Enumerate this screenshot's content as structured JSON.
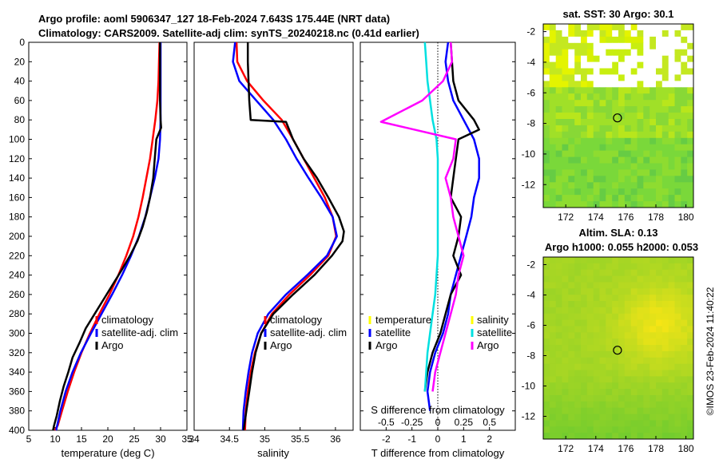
{
  "figure": {
    "title_line1": "Argo profile: aoml 5906347_127 18-Feb-2024 7.643S 175.44E (NRT data)",
    "title_line2": "Climatology: CARS2009. Satellite-adj clim: synTS_20240218.nc (0.41d earlier)",
    "timestamp": "©IMOS 23-Feb-2024 11:40:22"
  },
  "colors": {
    "climatology": "#ff0000",
    "satellite": "#0000ff",
    "argo": "#000000",
    "sat_salinity": "#00e0e0",
    "argo_salinity": "#ff00ff"
  },
  "chart_data": [
    {
      "type": "line",
      "id": "temperature",
      "xlabel": "temperature (deg C)",
      "ylabel": "",
      "xlim": [
        5,
        35
      ],
      "ylim": [
        400,
        0
      ],
      "xticks": [
        "5",
        "10",
        "15",
        "20",
        "25",
        "30",
        "35"
      ],
      "yticks": [
        "0",
        "20",
        "40",
        "60",
        "80",
        "100",
        "120",
        "140",
        "160",
        "180",
        "200",
        "220",
        "240",
        "260",
        "280",
        "300",
        "320",
        "340",
        "360",
        "380",
        "400"
      ],
      "legend": [
        "climatology",
        "satellite-adj. clim",
        "Argo"
      ],
      "series": [
        {
          "name": "climatology",
          "color": "#ff0000",
          "x": [
            29.8,
            29.7,
            29.6,
            29.4,
            29.0,
            28.5,
            28.0,
            27.3,
            26.6,
            25.8,
            24.8,
            23.5,
            22.0,
            20.3,
            18.4,
            16.6,
            15.0,
            13.6,
            12.4,
            11.3,
            10.5,
            9.9
          ],
          "y": [
            0,
            20,
            40,
            60,
            80,
            100,
            120,
            140,
            160,
            180,
            200,
            220,
            240,
            260,
            280,
            300,
            320,
            340,
            360,
            380,
            395,
            400
          ]
        },
        {
          "name": "satellite-adj. clim",
          "color": "#0000ff",
          "x": [
            30.0,
            30.0,
            30.0,
            30.0,
            30.0,
            29.9,
            29.6,
            28.9,
            28.0,
            27.1,
            25.9,
            24.4,
            22.7,
            20.8,
            18.8,
            16.8,
            14.9,
            13.3,
            12.0,
            11.0,
            10.2
          ],
          "y": [
            0,
            20,
            40,
            60,
            80,
            100,
            120,
            140,
            160,
            180,
            200,
            220,
            240,
            260,
            280,
            300,
            320,
            340,
            360,
            380,
            400
          ]
        },
        {
          "name": "Argo",
          "color": "#000000",
          "x": [
            29.9,
            29.9,
            29.9,
            29.9,
            30.0,
            30.1,
            29.2,
            28.9,
            28.6,
            28.0,
            27.4,
            26.6,
            25.6,
            24.2,
            22.6,
            20.9,
            19.2,
            17.5,
            15.8,
            14.6,
            13.3,
            12.5,
            11.6,
            10.9,
            10.3,
            9.8,
            9.6
          ],
          "y": [
            0,
            20,
            40,
            60,
            80,
            88,
            100,
            120,
            140,
            160,
            175,
            190,
            205,
            220,
            235,
            250,
            265,
            280,
            295,
            310,
            325,
            340,
            355,
            370,
            385,
            395,
            400
          ]
        }
      ]
    },
    {
      "type": "line",
      "id": "salinity",
      "xlabel": "salinity",
      "xlim": [
        34,
        36.25
      ],
      "ylim": [
        400,
        0
      ],
      "xticks": [
        "34",
        "34.5",
        "35",
        "35.5",
        "36"
      ],
      "legend": [
        "climatology",
        "satellite-adj. clim",
        "Argo"
      ],
      "series": [
        {
          "name": "climatology",
          "color": "#ff0000",
          "x": [
            34.6,
            34.61,
            34.75,
            34.98,
            35.24,
            35.4,
            35.55,
            35.7,
            35.85,
            35.96,
            36.01,
            35.9,
            35.64,
            35.35,
            35.1,
            34.95,
            34.86,
            34.8,
            34.76,
            34.73,
            34.72
          ],
          "y": [
            0,
            20,
            40,
            60,
            80,
            100,
            120,
            140,
            160,
            180,
            200,
            220,
            240,
            260,
            280,
            300,
            320,
            340,
            360,
            380,
            400
          ]
        },
        {
          "name": "satellite-adj. clim",
          "color": "#0000ff",
          "x": [
            34.58,
            34.55,
            34.64,
            34.88,
            35.12,
            35.3,
            35.45,
            35.62,
            35.8,
            35.96,
            36.02,
            35.88,
            35.6,
            35.3,
            35.05,
            34.9,
            34.82,
            34.77,
            34.73,
            34.7,
            34.69
          ],
          "y": [
            0,
            20,
            40,
            60,
            80,
            100,
            120,
            140,
            160,
            180,
            200,
            220,
            240,
            260,
            280,
            300,
            320,
            340,
            360,
            380,
            400
          ]
        },
        {
          "name": "Argo",
          "color": "#000000",
          "x": [
            34.76,
            34.76,
            34.77,
            34.78,
            34.8,
            35.3,
            35.4,
            35.55,
            35.74,
            35.9,
            36.05,
            36.12,
            36.1,
            35.95,
            35.7,
            35.4,
            35.12,
            34.95,
            34.87,
            34.82,
            34.78,
            34.74,
            34.7
          ],
          "y": [
            0,
            20,
            40,
            60,
            80,
            82,
            100,
            120,
            140,
            160,
            180,
            195,
            205,
            220,
            240,
            260,
            280,
            300,
            320,
            340,
            360,
            380,
            400
          ]
        }
      ]
    },
    {
      "type": "line",
      "id": "difference",
      "xlabel": "T difference from climatology",
      "xlabel_top": "S difference from climatology",
      "xlim": [
        -3,
        3
      ],
      "ylim": [
        400,
        0
      ],
      "xticks": [
        "-2",
        "-1",
        "0",
        "1",
        "2"
      ],
      "xticks_s": [
        "-0.5",
        "-0.25",
        "0",
        "0.25",
        "0.5"
      ],
      "legend": [
        "temperature",
        "satellite",
        "Argo",
        "salinity",
        "satellite",
        "Argo"
      ],
      "series": [
        {
          "name": "T satellite",
          "color": "#0000ff",
          "x": [
            0.4,
            0.3,
            0.4,
            0.6,
            1.0,
            1.4,
            1.6,
            1.6,
            1.4,
            1.3,
            1.1,
            0.9,
            0.7,
            0.5,
            0.4,
            0.2,
            -0.1,
            -0.3,
            -0.4,
            -0.3
          ],
          "y": [
            0,
            20,
            40,
            60,
            80,
            100,
            120,
            140,
            160,
            180,
            200,
            220,
            240,
            260,
            280,
            300,
            320,
            340,
            360,
            380
          ]
        },
        {
          "name": "T Argo",
          "color": "#000000",
          "x": [
            0.5,
            0.55,
            0.6,
            0.8,
            1.4,
            1.6,
            0.8,
            0.7,
            0.6,
            0.5,
            0.9,
            0.8,
            0.6,
            0.9,
            0.5,
            0.3,
            0.1,
            -0.2,
            -0.4,
            -0.5
          ],
          "y": [
            0,
            20,
            40,
            60,
            80,
            90,
            100,
            120,
            140,
            160,
            180,
            200,
            220,
            240,
            260,
            280,
            300,
            320,
            340,
            360
          ]
        },
        {
          "name": "S satellite",
          "color": "#00e0e0",
          "x": [
            -0.5,
            -0.45,
            -0.4,
            -0.3,
            -0.2,
            -0.05,
            0.0,
            0.0,
            0.0,
            0.0,
            0.0,
            0.0,
            -0.05,
            -0.1,
            -0.2,
            -0.3,
            -0.4,
            -0.45,
            -0.5
          ],
          "y": [
            0,
            20,
            40,
            60,
            80,
            100,
            120,
            140,
            160,
            180,
            200,
            220,
            240,
            260,
            280,
            300,
            320,
            340,
            360
          ]
        },
        {
          "name": "S Argo",
          "color": "#ff00ff",
          "x": [
            0.5,
            0.55,
            0.2,
            -0.6,
            -2.2,
            0.7,
            0.6,
            0.3,
            0.5,
            0.6,
            0.8,
            1.0,
            0.8,
            0.7,
            0.5,
            0.3,
            0.1,
            -0.1,
            -0.2
          ],
          "y": [
            0,
            20,
            40,
            60,
            82,
            100,
            120,
            140,
            160,
            180,
            200,
            220,
            240,
            260,
            280,
            300,
            320,
            340,
            360
          ]
        }
      ]
    },
    {
      "type": "heatmap",
      "id": "sst_map",
      "title": "sat. SST: 30 Argo: 30.1",
      "xticks": [
        "172",
        "174",
        "176",
        "178",
        "180"
      ],
      "yticks": [
        "-2",
        "-4",
        "-6",
        "-8",
        "-10",
        "-12"
      ],
      "xlim": [
        170.5,
        180.5
      ],
      "ylim": [
        -13.5,
        -1.5
      ],
      "marker": {
        "lon": 175.44,
        "lat": -7.643
      }
    },
    {
      "type": "heatmap",
      "id": "sla_map",
      "title": "Altim. SLA: 0.13",
      "subtitle": "Argo h1000: 0.055 h2000: 0.053",
      "xticks": [
        "172",
        "174",
        "176",
        "178",
        "180"
      ],
      "yticks": [
        "-2",
        "-4",
        "-6",
        "-8",
        "-10",
        "-12"
      ],
      "xlim": [
        170.5,
        180.5
      ],
      "ylim": [
        -13.5,
        -1.5
      ],
      "marker": {
        "lon": 175.44,
        "lat": -7.643
      }
    }
  ]
}
